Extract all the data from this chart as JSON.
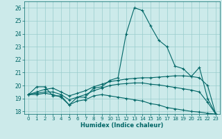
{
  "title": "",
  "xlabel": "Humidex (Indice chaleur)",
  "bg_color": "#cceaea",
  "grid_color": "#99cccc",
  "line_color": "#006666",
  "xlim": [
    -0.5,
    23.5
  ],
  "ylim": [
    17.8,
    26.5
  ],
  "xticks": [
    0,
    1,
    2,
    3,
    4,
    5,
    6,
    7,
    8,
    9,
    10,
    11,
    12,
    13,
    14,
    15,
    16,
    17,
    18,
    19,
    20,
    21,
    22,
    23
  ],
  "yticks": [
    18,
    19,
    20,
    21,
    22,
    23,
    24,
    25,
    26
  ],
  "line1_x": [
    0,
    1,
    2,
    3,
    4,
    5,
    6,
    7,
    8,
    9,
    10,
    11,
    12,
    13,
    14,
    15,
    16,
    17,
    18,
    19,
    20,
    21,
    22,
    23
  ],
  "line1_y": [
    19.3,
    19.9,
    19.9,
    19.2,
    19.2,
    18.5,
    19.1,
    19.1,
    19.8,
    19.9,
    20.4,
    20.6,
    24.0,
    26.0,
    25.8,
    24.6,
    23.5,
    23.0,
    21.5,
    21.3,
    20.7,
    21.4,
    19.0,
    17.8
  ],
  "line2_x": [
    0,
    1,
    2,
    3,
    4,
    5,
    6,
    7,
    8,
    9,
    10,
    11,
    12,
    13,
    14,
    15,
    16,
    17,
    18,
    19,
    20,
    21,
    22,
    23
  ],
  "line2_y": [
    19.3,
    19.5,
    19.7,
    19.8,
    19.5,
    19.2,
    19.4,
    19.6,
    19.9,
    20.1,
    20.3,
    20.4,
    20.5,
    20.55,
    20.6,
    20.6,
    20.65,
    20.7,
    20.75,
    20.75,
    20.7,
    20.6,
    20.0,
    17.8
  ],
  "line3_x": [
    0,
    1,
    2,
    3,
    4,
    5,
    6,
    7,
    8,
    9,
    10,
    11,
    12,
    13,
    14,
    15,
    16,
    17,
    18,
    19,
    20,
    21,
    22,
    23
  ],
  "line3_y": [
    19.3,
    19.4,
    19.5,
    19.5,
    19.3,
    18.9,
    19.1,
    19.3,
    19.6,
    19.8,
    20.0,
    20.1,
    20.15,
    20.2,
    20.2,
    20.1,
    20.05,
    19.95,
    19.85,
    19.75,
    19.65,
    19.5,
    18.7,
    17.8
  ],
  "line4_x": [
    0,
    1,
    2,
    3,
    4,
    5,
    6,
    7,
    8,
    9,
    10,
    11,
    12,
    13,
    14,
    15,
    16,
    17,
    18,
    19,
    20,
    21,
    22,
    23
  ],
  "line4_y": [
    19.3,
    19.3,
    19.4,
    19.3,
    19.1,
    18.5,
    18.8,
    18.9,
    19.2,
    19.3,
    19.2,
    19.1,
    19.0,
    18.9,
    18.8,
    18.6,
    18.5,
    18.3,
    18.2,
    18.1,
    18.0,
    17.95,
    17.85,
    17.8
  ]
}
